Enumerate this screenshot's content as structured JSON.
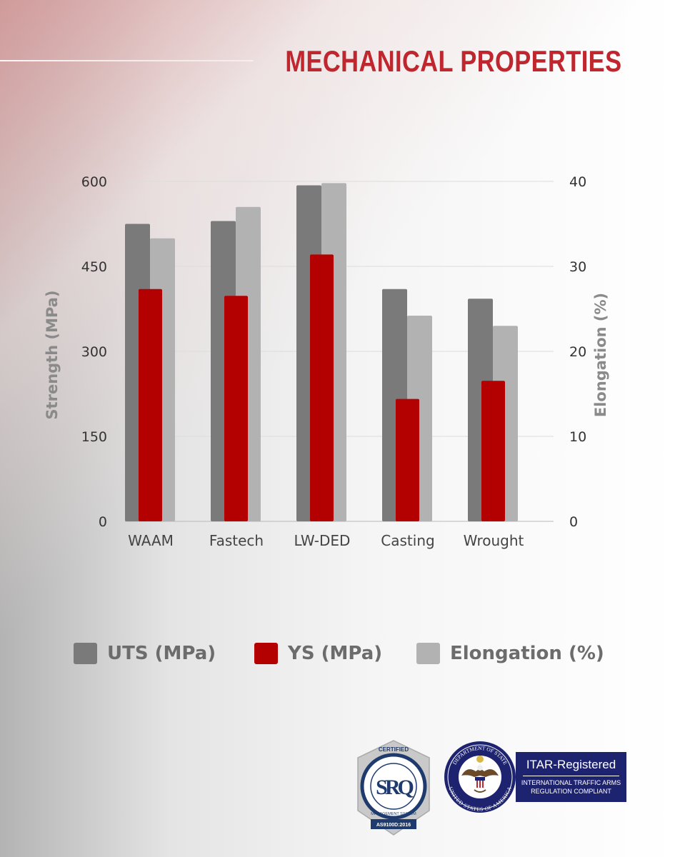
{
  "page": {
    "title": "MECHANICAL PROPERTIES"
  },
  "chart_data": {
    "type": "bar",
    "categories": [
      "WAAM",
      "Fastech",
      "LW-DED",
      "Casting",
      "Wrought"
    ],
    "series": [
      {
        "name": "UTS (MPa)",
        "axis": "left",
        "color": "#7a7a7a",
        "values": [
          525,
          530,
          593,
          410,
          393
        ]
      },
      {
        "name": "Elongation (%)",
        "axis": "right",
        "color": "#b2b2b2",
        "values": [
          33.3,
          37,
          39.8,
          24.2,
          23
        ]
      },
      {
        "name": "YS (MPa)",
        "axis": "left",
        "color": "#b30000",
        "values": [
          410,
          398,
          471,
          216,
          248
        ]
      }
    ],
    "left_axis": {
      "label": "Strength (MPa)",
      "min": 0,
      "max": 600,
      "ticks": [
        "0",
        "150",
        "300",
        "450",
        "600"
      ]
    },
    "right_axis": {
      "label": "Elongation (%)",
      "min": 0,
      "max": 40,
      "ticks": [
        "0",
        "10",
        "20",
        "30",
        "40"
      ]
    },
    "grid": true,
    "legend_position": "bottom"
  },
  "legend": {
    "items": [
      {
        "label": "UTS (MPa)",
        "color": "#7a7a7a"
      },
      {
        "label": "YS (MPa)",
        "color": "#b30000"
      },
      {
        "label": "Elongation (%)",
        "color": "#b2b2b2"
      }
    ]
  },
  "badges": {
    "srq": {
      "top_text": "CERTIFIED",
      "monogram": "SRQ",
      "ring_text": "MANAGEMENT SYSTEM",
      "standard": "AS9100D:2016"
    },
    "seal": {
      "top_text": "DEPARTMENT OF STATE",
      "bottom_text": "UNITED STATES OF AMERICA"
    },
    "itar": {
      "title": "ITAR-Registered",
      "line1": "INTERNATIONAL TRAFFIC ARMS",
      "line2": "REGULATION COMPLIANT"
    }
  }
}
